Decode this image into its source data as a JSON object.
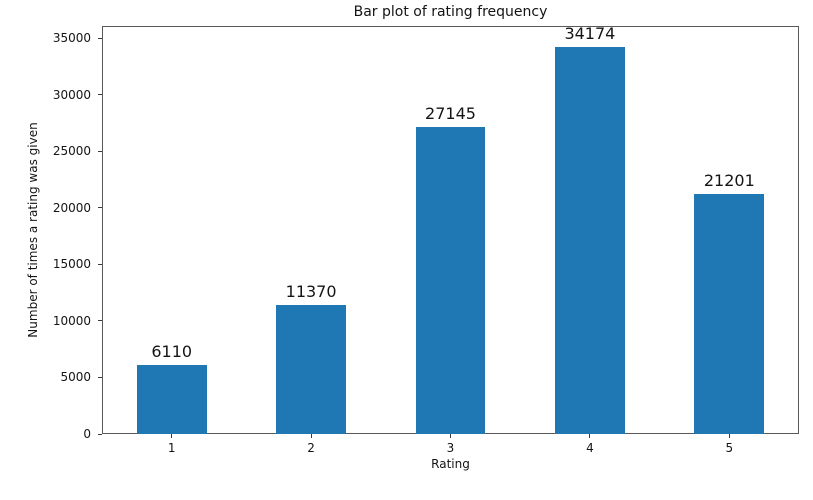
{
  "chart_data": {
    "type": "bar",
    "title": "Bar plot of rating frequency",
    "xlabel": "Rating",
    "ylabel": "Number of times a rating was given",
    "categories": [
      "1",
      "2",
      "3",
      "4",
      "5"
    ],
    "values": [
      6110,
      11370,
      27145,
      34174,
      21201
    ],
    "bar_labels": [
      "6110",
      "11370",
      "27145",
      "34174",
      "21201"
    ],
    "yticks": [
      0,
      5000,
      10000,
      15000,
      20000,
      25000,
      30000,
      35000
    ],
    "ylim": [
      0,
      36061
    ],
    "bar_width_fraction": 0.5,
    "bar_color": "#1f77b4",
    "text_color": "#141414",
    "spine_color": "#5a5a5a",
    "background": "#ffffff",
    "grid": false,
    "legend": null
  }
}
